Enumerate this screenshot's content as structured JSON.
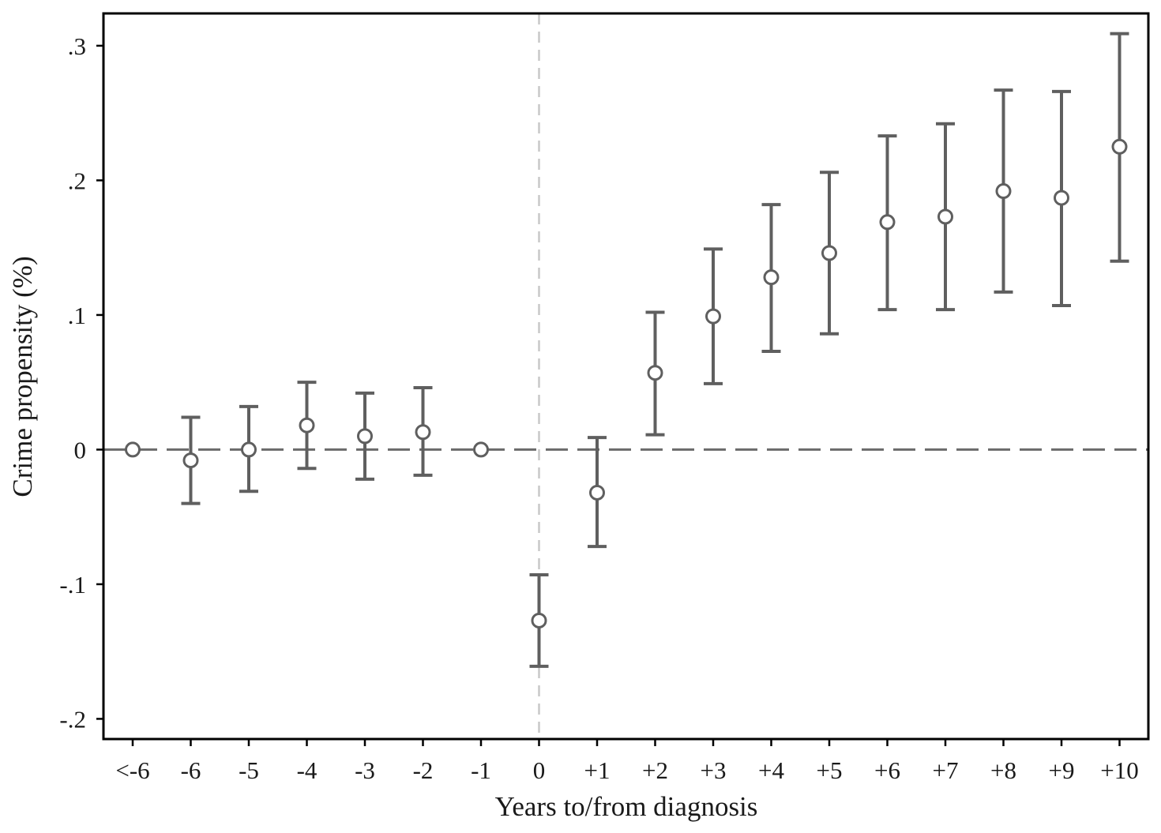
{
  "chart_data": {
    "type": "scatter",
    "subtype": "coefficient plot with 95% confidence interval error bars",
    "title": "",
    "xlabel": "Years to/from diagnosis",
    "ylabel": "Crime propensity (%)",
    "categories": [
      "<-6",
      "-6",
      "-5",
      "-4",
      "-3",
      "-2",
      "-1",
      "0",
      "+1",
      "+2",
      "+3",
      "+4",
      "+5",
      "+6",
      "+7",
      "+8",
      "+9",
      "+10"
    ],
    "series": [
      {
        "estimate": [
          0.0,
          -0.008,
          0.0,
          0.018,
          0.01,
          0.013,
          0.0,
          -0.127,
          -0.032,
          0.057,
          0.099,
          0.128,
          0.146,
          0.169,
          0.173,
          0.192,
          0.187,
          0.225
        ],
        "ci_low": [
          null,
          -0.04,
          -0.031,
          -0.014,
          -0.022,
          -0.019,
          null,
          -0.161,
          -0.072,
          0.011,
          0.049,
          0.073,
          0.086,
          0.104,
          0.104,
          0.117,
          0.107,
          0.14
        ],
        "ci_high": [
          null,
          0.024,
          0.032,
          0.05,
          0.042,
          0.046,
          null,
          -0.093,
          0.009,
          0.102,
          0.149,
          0.182,
          0.206,
          0.233,
          0.242,
          0.267,
          0.266,
          0.309
        ]
      }
    ],
    "yticks": [
      {
        "value": 0.3,
        "label": ".3"
      },
      {
        "value": 0.2,
        "label": ".2"
      },
      {
        "value": 0.1,
        "label": ".1"
      },
      {
        "value": 0.0,
        "label": "0"
      },
      {
        "value": -0.1,
        "label": "-.1"
      },
      {
        "value": -0.2,
        "label": "-.2"
      }
    ],
    "ylim": [
      -0.215,
      0.324
    ],
    "reference_lines": {
      "horizontal_at_y": 0,
      "vertical_at_category": "0"
    },
    "grid": false,
    "legend": "none",
    "colors": {
      "markers": "#5f5f5f",
      "error_bars": "#5f5f5f",
      "zero_line": "#6b6b6b",
      "vertical_ref_line": "#c8c8c8",
      "frame": "#000000"
    }
  }
}
